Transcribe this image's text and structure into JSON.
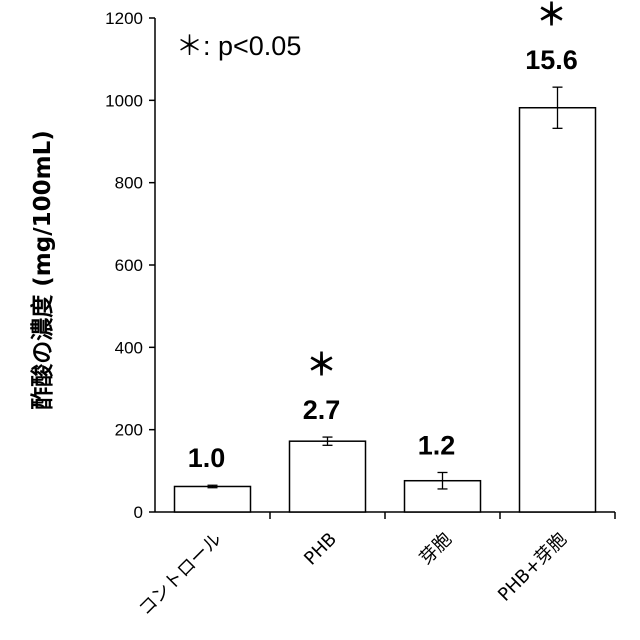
{
  "chart_data": {
    "type": "bar",
    "categories": [
      "コントロール",
      "PHB",
      "芽胞",
      "PHB+芽胞"
    ],
    "values": [
      62,
      172,
      76,
      982
    ],
    "error": [
      3,
      10,
      20,
      50
    ],
    "data_labels": [
      "1.0",
      "2.7",
      "1.2",
      "15.6"
    ],
    "significance": [
      "",
      "＊",
      "",
      "＊"
    ],
    "annotation": "＊: p<0.05",
    "ylabel": "酢酸の濃度 (mg/100mL)",
    "xlabel": "",
    "title": "",
    "ylim": [
      0,
      1200
    ],
    "yticks": [
      0,
      200,
      400,
      600,
      800,
      1000,
      1200
    ],
    "grid": false,
    "colors": {
      "bar_fill": "#ffffff",
      "bar_stroke": "#000000"
    }
  }
}
